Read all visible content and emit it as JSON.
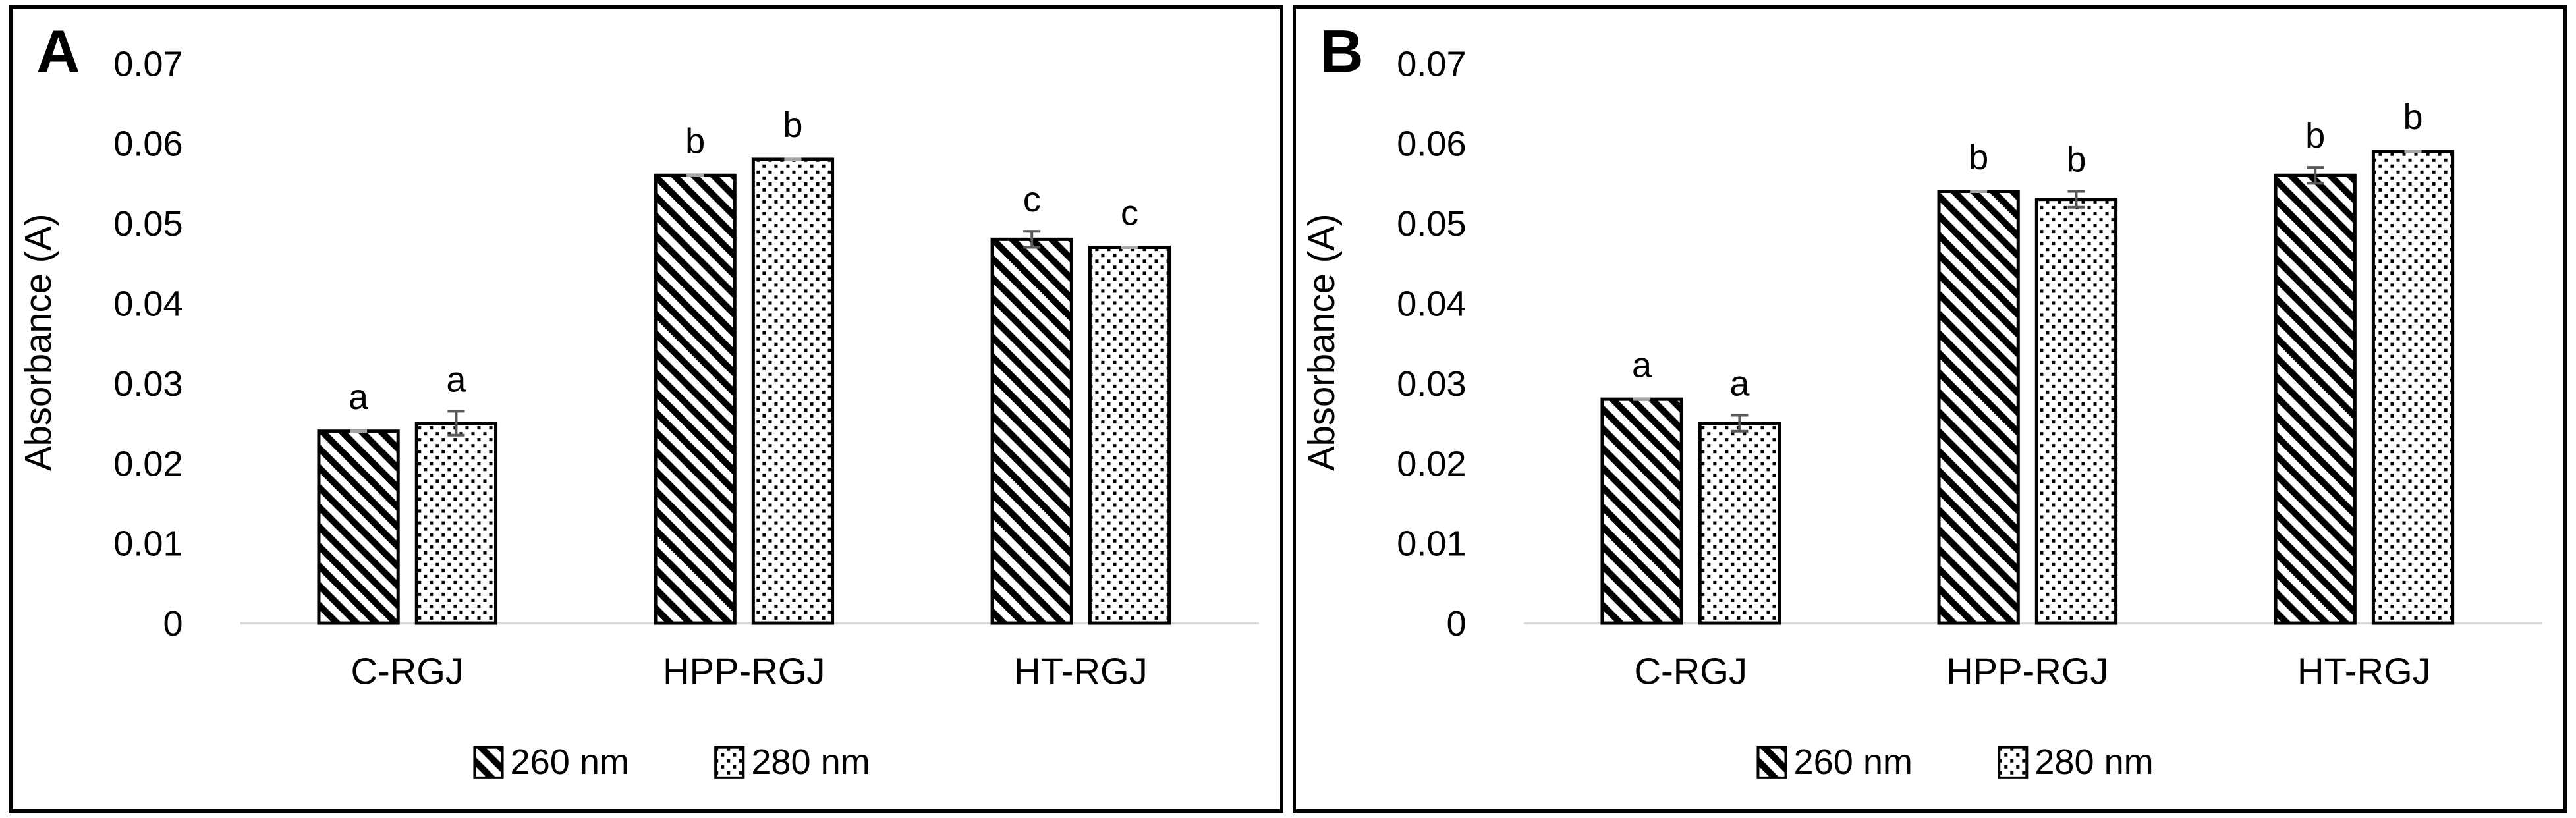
{
  "figure": {
    "background": "#ffffff",
    "panel_labels": [
      "A",
      "B"
    ]
  },
  "colors": {
    "background": "#ffffff",
    "panel_border": "#000000",
    "bar_fill": "#ffffff",
    "bar_stroke": "#000000",
    "pattern_color": "#000000",
    "error_bar": "#595959",
    "error_tick_flat": "#a6a6a6",
    "axis_line": "#d9d9d9",
    "text": "#000000"
  },
  "chart_data": [
    {
      "type": "bar",
      "panel_label": "A",
      "title": "",
      "xlabel": "",
      "ylabel": "Absorbance (A)",
      "ylim": [
        0,
        0.07
      ],
      "ytick_step": 0.01,
      "y_tick_labels": [
        "0",
        "0.01",
        "0.02",
        "0.03",
        "0.04",
        "0.05",
        "0.06",
        "0.07"
      ],
      "grid": false,
      "legend_position": "bottom",
      "categories": [
        "C-RGJ",
        "HPP-RGJ",
        "HT-RGJ"
      ],
      "series": [
        {
          "name": "260 nm",
          "pattern": "diagonal-hatch",
          "values": [
            0.024,
            0.056,
            0.048
          ],
          "errors": [
            0.0003,
            0.0003,
            0.001
          ],
          "sig_letters": [
            "a",
            "b",
            "c"
          ]
        },
        {
          "name": "280 nm",
          "pattern": "dots",
          "values": [
            0.025,
            0.058,
            0.047
          ],
          "errors": [
            0.0015,
            0.0003,
            0.0003
          ],
          "sig_letters": [
            "a",
            "b",
            "c"
          ]
        }
      ]
    },
    {
      "type": "bar",
      "panel_label": "B",
      "title": "",
      "xlabel": "",
      "ylabel": "Absorbance (A)",
      "ylim": [
        0,
        0.07
      ],
      "ytick_step": 0.01,
      "y_tick_labels": [
        "0",
        "0.01",
        "0.02",
        "0.03",
        "0.04",
        "0.05",
        "0.06",
        "0.07"
      ],
      "grid": false,
      "legend_position": "bottom",
      "categories": [
        "C-RGJ",
        "HPP-RGJ",
        "HT-RGJ"
      ],
      "series": [
        {
          "name": "260 nm",
          "pattern": "diagonal-hatch",
          "values": [
            0.028,
            0.054,
            0.056
          ],
          "errors": [
            0.0003,
            0.0003,
            0.001
          ],
          "sig_letters": [
            "a",
            "b",
            "b"
          ]
        },
        {
          "name": "280 nm",
          "pattern": "dots",
          "values": [
            0.025,
            0.053,
            0.059
          ],
          "errors": [
            0.001,
            0.001,
            0.0003
          ],
          "sig_letters": [
            "a",
            "b",
            "b"
          ]
        }
      ]
    }
  ]
}
